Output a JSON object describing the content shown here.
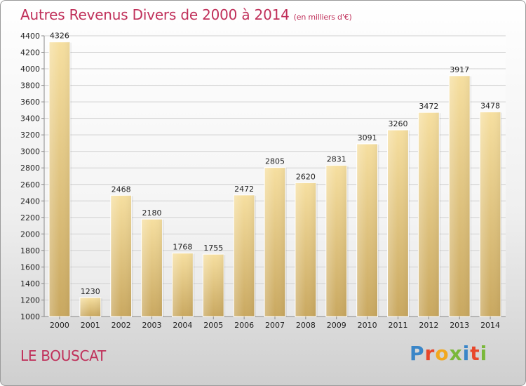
{
  "header": {
    "title": "Autres Revenus Divers de 2000 à 2014",
    "subtitle": "(en milliers d'€)"
  },
  "footer": {
    "town": "LE BOUSCAT",
    "logo_text": "Proxiti",
    "logo_colors": [
      "#3a86c8",
      "#e8462a",
      "#f2a81e",
      "#7ab83a",
      "#3a86c8",
      "#e8462a",
      "#7ab83a"
    ]
  },
  "colors": {
    "bar_light": "#f6dfa0",
    "bar_dark": "#c9a860",
    "title": "#c0305a"
  },
  "chart_data": {
    "type": "bar",
    "title": "Autres Revenus Divers de 2000 à 2014",
    "categories": [
      "2000",
      "2001",
      "2002",
      "2003",
      "2004",
      "2005",
      "2006",
      "2007",
      "2008",
      "2009",
      "2010",
      "2011",
      "2012",
      "2013",
      "2014"
    ],
    "values": [
      4326,
      1230,
      2468,
      2180,
      1768,
      1755,
      2472,
      2805,
      2620,
      2831,
      3091,
      3260,
      3472,
      3917,
      3478
    ],
    "ylim": [
      1000,
      4400
    ],
    "yticks": [
      1000,
      1200,
      1400,
      1600,
      1800,
      2000,
      2200,
      2400,
      2600,
      2800,
      3000,
      3200,
      3400,
      3600,
      3800,
      4000,
      4200,
      4400
    ],
    "grid": true
  }
}
